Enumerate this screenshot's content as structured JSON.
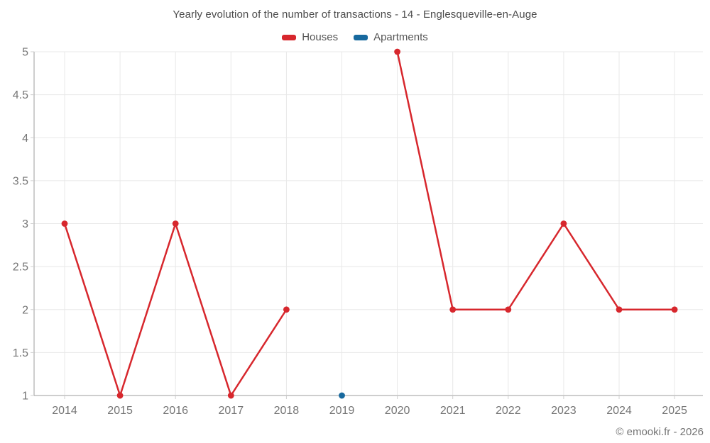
{
  "page": {
    "copyright": "© emooki.fr - 2026",
    "background": "#ffffff"
  },
  "chart_data": {
    "type": "line",
    "title": "Yearly evolution of the number of transactions - 14 - Englesqueville-en-Auge",
    "x": [
      "2014",
      "2015",
      "2016",
      "2017",
      "2018",
      "2019",
      "2020",
      "2021",
      "2022",
      "2023",
      "2024",
      "2025"
    ],
    "series": [
      {
        "name": "Houses",
        "color": "#d7272d",
        "values": [
          3,
          1,
          3,
          1,
          2,
          null,
          5,
          2,
          2,
          3,
          2,
          2
        ]
      },
      {
        "name": "Apartments",
        "color": "#17699e",
        "values": [
          null,
          null,
          null,
          null,
          null,
          1,
          null,
          null,
          null,
          null,
          null,
          null
        ]
      }
    ],
    "ylim": [
      1,
      5
    ],
    "yticks": [
      1,
      1.5,
      2,
      2.5,
      3,
      3.5,
      4,
      4.5,
      5
    ],
    "grid": true,
    "legend_position": "top",
    "theme": {
      "grid_color": "#e8e8e8",
      "axis_color": "#9e9e9e",
      "tick_color": "#cfcfcf",
      "label_color": "#757575",
      "title_color": "#4c4c4c"
    }
  }
}
